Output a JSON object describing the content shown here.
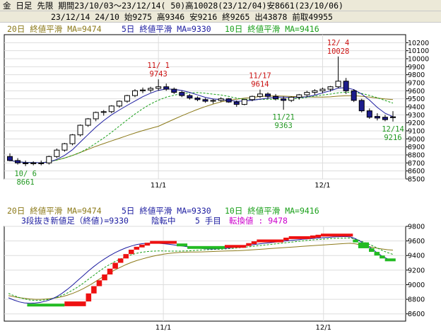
{
  "header": {
    "line1": "金 日足 先限 期間23/10/03〜23/12/14( 50)高10028(23/12/04)安8661(23/10/06)",
    "line2": "23/12/14 24/10 始9275 高9346 安9216 終9265 出43878 前取49955"
  },
  "legend": {
    "ma20": "20日 終値平滑 MA=9474",
    "ma5": "5日 終値平滑 MA=9330",
    "ma10": "10日 終値平滑 MA=9416",
    "sanbon_info": "3段抜き新値足（終値)=9330",
    "trend": "陰転中",
    "count": "5 手目",
    "reversal": "転換値 : 9478"
  },
  "colors": {
    "up_candle": "#ffffff",
    "down_candle": "#1c1c8c",
    "ma5": "#1c1ca0",
    "ma10": "#1aa01a",
    "ma20": "#8c7a1a",
    "yang_block": "#ee1111",
    "yin_block": "#22bb22",
    "annot_high": "#cc1111",
    "annot_low": "#229922"
  },
  "chart_data": [
    {
      "type": "candlestick",
      "x_tick_labels": [
        "11/1",
        "12/1"
      ],
      "ylim": [
        8500,
        10300
      ],
      "y_ticks": [
        8500,
        8600,
        8700,
        8800,
        8900,
        9000,
        9100,
        9200,
        9300,
        9400,
        9500,
        9600,
        9700,
        9800,
        9900,
        10000,
        10100,
        10200
      ],
      "candles": [
        [
          8780,
          8820,
          8720,
          8730
        ],
        [
          8730,
          8760,
          8680,
          8700
        ],
        [
          8700,
          8730,
          8661,
          8690
        ],
        [
          8690,
          8720,
          8670,
          8700
        ],
        [
          8700,
          8730,
          8670,
          8690
        ],
        [
          8700,
          8790,
          8680,
          8780
        ],
        [
          8780,
          8880,
          8760,
          8860
        ],
        [
          8860,
          8950,
          8840,
          8940
        ],
        [
          8940,
          9060,
          8920,
          9050
        ],
        [
          9050,
          9180,
          9030,
          9170
        ],
        [
          9170,
          9260,
          9150,
          9250
        ],
        [
          9250,
          9340,
          9220,
          9330
        ],
        [
          9330,
          9360,
          9290,
          9340
        ],
        [
          9340,
          9420,
          9320,
          9410
        ],
        [
          9410,
          9480,
          9390,
          9470
        ],
        [
          9470,
          9550,
          9450,
          9540
        ],
        [
          9540,
          9620,
          9520,
          9600
        ],
        [
          9600,
          9640,
          9570,
          9610
        ],
        [
          9610,
          9650,
          9580,
          9630
        ],
        [
          9630,
          9743,
          9600,
          9650
        ],
        [
          9650,
          9690,
          9600,
          9620
        ],
        [
          9620,
          9640,
          9560,
          9580
        ],
        [
          9580,
          9600,
          9520,
          9540
        ],
        [
          9540,
          9560,
          9490,
          9510
        ],
        [
          9510,
          9530,
          9470,
          9490
        ],
        [
          9490,
          9510,
          9450,
          9470
        ],
        [
          9470,
          9500,
          9440,
          9480
        ],
        [
          9480,
          9520,
          9460,
          9500
        ],
        [
          9500,
          9510,
          9450,
          9460
        ],
        [
          9460,
          9480,
          9400,
          9430
        ],
        [
          9430,
          9500,
          9420,
          9490
        ],
        [
          9490,
          9540,
          9470,
          9530
        ],
        [
          9530,
          9614,
          9510,
          9560
        ],
        [
          9560,
          9580,
          9500,
          9530
        ],
        [
          9530,
          9560,
          9480,
          9500
        ],
        [
          9500,
          9530,
          9363,
          9480
        ],
        [
          9480,
          9530,
          9460,
          9520
        ],
        [
          9520,
          9560,
          9490,
          9550
        ],
        [
          9550,
          9600,
          9520,
          9580
        ],
        [
          9580,
          9620,
          9550,
          9600
        ],
        [
          9600,
          9640,
          9570,
          9620
        ],
        [
          9620,
          9660,
          9590,
          9650
        ],
        [
          9650,
          10028,
          9630,
          9720
        ],
        [
          9720,
          9760,
          9560,
          9600
        ],
        [
          9600,
          9620,
          9460,
          9480
        ],
        [
          9480,
          9500,
          9330,
          9350
        ],
        [
          9350,
          9380,
          9250,
          9270
        ],
        [
          9280,
          9320,
          9230,
          9260
        ],
        [
          9270,
          9300,
          9220,
          9240
        ],
        [
          9275,
          9346,
          9216,
          9265
        ]
      ],
      "annotations": [
        {
          "date": "10/ 6",
          "value": "8661",
          "index": 2,
          "kind": "low"
        },
        {
          "date": "11/ 1",
          "value": "9743",
          "index": 19,
          "kind": "high"
        },
        {
          "date": "11/17",
          "value": "9614",
          "index": 32,
          "kind": "high"
        },
        {
          "date": "11/21",
          "value": "9363",
          "index": 35,
          "kind": "low"
        },
        {
          "date": "12/ 4",
          "value": "10028",
          "index": 42,
          "kind": "high"
        },
        {
          "date": "12/14",
          "value": "9216",
          "index": 49,
          "kind": "low"
        }
      ]
    },
    {
      "type": "bar",
      "ylim": [
        8500,
        9800
      ],
      "y_ticks": [
        8600,
        8800,
        9000,
        9200,
        9400,
        9600,
        9800
      ],
      "x_tick_labels": [
        "11/1",
        "12/1"
      ],
      "blocks": [
        {
          "start": 4,
          "end": 10,
          "dir": "down",
          "open": 8740,
          "close": 8705
        },
        {
          "start": 11,
          "end": 14,
          "dir": "up",
          "open": 8705,
          "close": 8770
        },
        {
          "start": 15,
          "end": 15,
          "dir": "up",
          "open": 8770,
          "close": 8880
        },
        {
          "start": 16,
          "end": 16,
          "dir": "up",
          "open": 8880,
          "close": 8980
        },
        {
          "start": 17,
          "end": 17,
          "dir": "up",
          "open": 8980,
          "close": 9060
        },
        {
          "start": 18,
          "end": 18,
          "dir": "up",
          "open": 9060,
          "close": 9140
        },
        {
          "start": 19,
          "end": 19,
          "dir": "up",
          "open": 9140,
          "close": 9220
        },
        {
          "start": 20,
          "end": 20,
          "dir": "up",
          "open": 9220,
          "close": 9300
        },
        {
          "start": 21,
          "end": 21,
          "dir": "up",
          "open": 9300,
          "close": 9360
        },
        {
          "start": 22,
          "end": 22,
          "dir": "up",
          "open": 9360,
          "close": 9420
        },
        {
          "start": 23,
          "end": 23,
          "dir": "up",
          "open": 9420,
          "close": 9480
        },
        {
          "start": 24,
          "end": 24,
          "dir": "up",
          "open": 9480,
          "close": 9520
        },
        {
          "start": 25,
          "end": 25,
          "dir": "up",
          "open": 9520,
          "close": 9550
        },
        {
          "start": 26,
          "end": 26,
          "dir": "up",
          "open": 9550,
          "close": 9575
        },
        {
          "start": 27,
          "end": 31,
          "dir": "up",
          "open": 9575,
          "close": 9600
        },
        {
          "start": 32,
          "end": 33,
          "dir": "down",
          "open": 9565,
          "close": 9530
        },
        {
          "start": 34,
          "end": 40,
          "dir": "down",
          "open": 9530,
          "close": 9510
        },
        {
          "start": 41,
          "end": 44,
          "dir": "up",
          "open": 9510,
          "close": 9545
        },
        {
          "start": 45,
          "end": 45,
          "dir": "up",
          "open": 9545,
          "close": 9570
        },
        {
          "start": 46,
          "end": 46,
          "dir": "up",
          "open": 9570,
          "close": 9595
        },
        {
          "start": 47,
          "end": 51,
          "dir": "up",
          "open": 9595,
          "close": 9620
        },
        {
          "start": 52,
          "end": 52,
          "dir": "up",
          "open": 9620,
          "close": 9645
        },
        {
          "start": 53,
          "end": 56,
          "dir": "up",
          "open": 9645,
          "close": 9665
        },
        {
          "start": 57,
          "end": 57,
          "dir": "up",
          "open": 9650,
          "close": 9675
        },
        {
          "start": 58,
          "end": 58,
          "dir": "up",
          "open": 9660,
          "close": 9685
        },
        {
          "start": 59,
          "end": 64,
          "dir": "up",
          "open": 9670,
          "close": 9700
        },
        {
          "start": 65,
          "end": 65,
          "dir": "down",
          "open": 9620,
          "close": 9580
        },
        {
          "start": 66,
          "end": 67,
          "dir": "down",
          "open": 9580,
          "close": 9500
        },
        {
          "start": 68,
          "end": 68,
          "dir": "down",
          "open": 9500,
          "close": 9450
        },
        {
          "start": 69,
          "end": 69,
          "dir": "down",
          "open": 9450,
          "close": 9400
        },
        {
          "start": 70,
          "end": 70,
          "dir": "down",
          "open": 9400,
          "close": 9360
        },
        {
          "start": 71,
          "end": 72,
          "dir": "down",
          "open": 9360,
          "close": 9330
        }
      ],
      "ma20": [
        8850,
        8835,
        8822,
        8812,
        8805,
        8800,
        8800,
        8803,
        8810,
        8820,
        8835,
        8855,
        8880,
        8910,
        8945,
        8985,
        9030,
        9075,
        9120,
        9165,
        9205,
        9240,
        9275,
        9305,
        9330,
        9352,
        9372,
        9390,
        9405,
        9418,
        9428,
        9436,
        9442,
        9446,
        9448,
        9449,
        9450,
        9452,
        9455,
        9458,
        9460,
        9462,
        9464,
        9466,
        9470,
        9475,
        9480,
        9485,
        9490,
        9495,
        9500,
        9505,
        9510,
        9515,
        9520,
        9525,
        9530,
        9535,
        9540,
        9545,
        9550,
        9555,
        9560,
        9565,
        9568,
        9560,
        9545,
        9530,
        9515,
        9500,
        9490,
        9480,
        9474
      ],
      "ma10": [
        8880,
        8850,
        8825,
        8805,
        8790,
        8785,
        8785,
        8792,
        8805,
        8825,
        8852,
        8885,
        8925,
        8970,
        9020,
        9075,
        9130,
        9185,
        9235,
        9280,
        9320,
        9355,
        9385,
        9410,
        9430,
        9445,
        9455,
        9460,
        9462,
        9462,
        9460,
        9460,
        9460,
        9462,
        9465,
        9470,
        9475,
        9480,
        9482,
        9485,
        9488,
        9492,
        9498,
        9505,
        9512,
        9520,
        9528,
        9536,
        9544,
        9552,
        9560,
        9568,
        9576,
        9584,
        9592,
        9600,
        9608,
        9615,
        9620,
        9625,
        9630,
        9635,
        9638,
        9640,
        9640,
        9625,
        9600,
        9570,
        9540,
        9505,
        9470,
        9440,
        9416
      ],
      "ma5": [
        8820,
        8790,
        8765,
        8750,
        8745,
        8748,
        8758,
        8775,
        8800,
        8835,
        8880,
        8935,
        8995,
        9060,
        9125,
        9190,
        9250,
        9305,
        9355,
        9400,
        9440,
        9475,
        9505,
        9530,
        9550,
        9562,
        9568,
        9570,
        9568,
        9562,
        9555,
        9545,
        9535,
        9525,
        9515,
        9505,
        9498,
        9492,
        9490,
        9492,
        9496,
        9502,
        9510,
        9520,
        9530,
        9540,
        9550,
        9560,
        9568,
        9576,
        9584,
        9592,
        9600,
        9608,
        9615,
        9622,
        9628,
        9634,
        9640,
        9645,
        9650,
        9655,
        9658,
        9660,
        9655,
        9630,
        9590,
        9545,
        9495,
        9440,
        9390,
        9355,
        9330
      ]
    }
  ]
}
